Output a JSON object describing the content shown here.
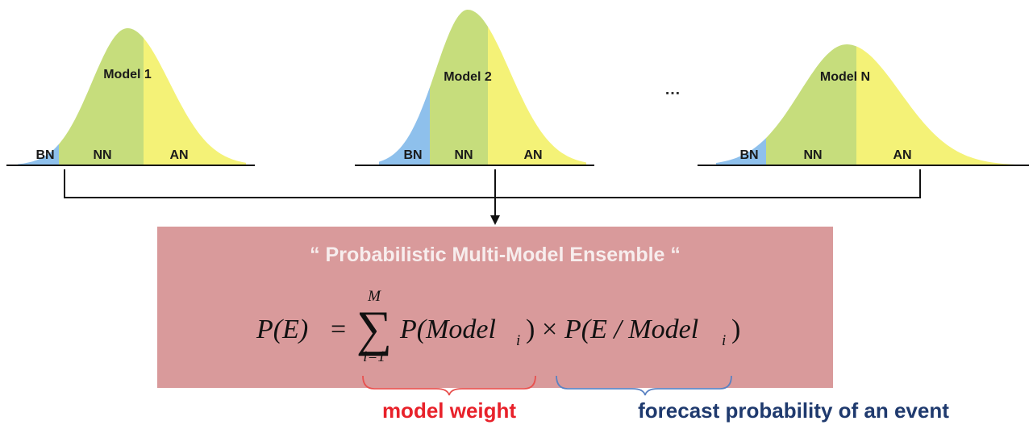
{
  "models": [
    {
      "name": "Model 1",
      "categories": [
        "BN",
        "NN",
        "AN"
      ]
    },
    {
      "name": "Model 2",
      "categories": [
        "BN",
        "NN",
        "AN"
      ]
    },
    {
      "name": "Model N",
      "categories": [
        "BN",
        "NN",
        "AN"
      ]
    }
  ],
  "ellipsis": "…",
  "ensemble_box": {
    "title": "“ Probabilistic Multi-Model Ensemble “",
    "formula": {
      "lhs": "P(E)",
      "equals": "=",
      "sum_upper": "M",
      "sum_lower": "i=1",
      "term1_open": "P(Model",
      "term1_sub": "i",
      "term1_close": ")",
      "times": "×",
      "term2_open": "P(E / Model",
      "term2_sub": "i",
      "term2_close": ")"
    }
  },
  "annotations": {
    "model_weight": "model weight",
    "forecast_probability": "forecast probability of an event"
  },
  "colors": {
    "bn": "#8ec0ec",
    "nn": "#c6dd7c",
    "an": "#f4f277",
    "box": "#d99a9b",
    "weight_red": "#e8212a",
    "forecast_blue": "#1f3a6e",
    "brace_red": "#e8514f",
    "brace_blue": "#5b82c2"
  }
}
